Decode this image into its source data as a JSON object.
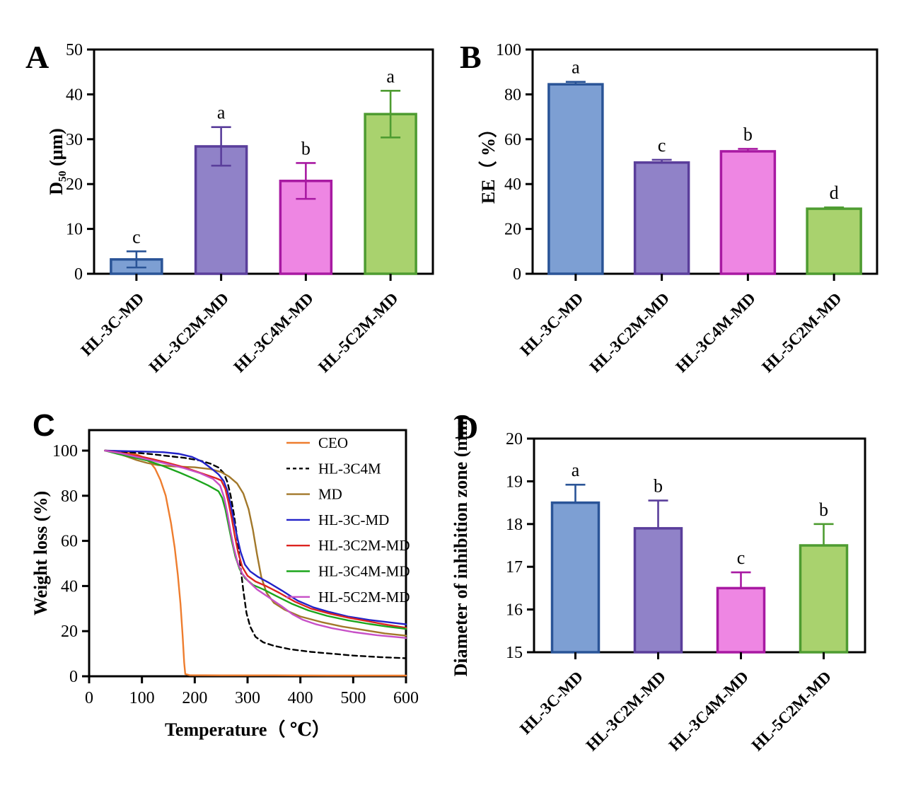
{
  "figure": {
    "panel_letters": [
      "A",
      "B",
      "C",
      "D"
    ],
    "categories": [
      "HL-3C-MD",
      "HL-3C2M-MD",
      "HL-3C4M-MD",
      "HL-5C2M-MD"
    ],
    "bar_palette": {
      "fills": [
        "#7D9FD3",
        "#9082C8",
        "#EE86E3",
        "#A9D26E"
      ],
      "strokes": [
        "#2A5497",
        "#5A3E9B",
        "#A819A2",
        "#4E9C31"
      ]
    }
  },
  "chart_data": [
    {
      "panel": "A",
      "type": "bar",
      "categories": [
        "HL-3C-MD",
        "HL-3C2M-MD",
        "HL-3C4M-MD",
        "HL-5C2M-MD"
      ],
      "values": [
        3.2,
        28.4,
        20.7,
        35.6
      ],
      "errors": [
        1.8,
        4.3,
        4.0,
        5.2
      ],
      "error_direction": "both",
      "sig_letters": [
        "c",
        "a",
        "b",
        "a"
      ],
      "ylabel": "D₅₀ (μm)",
      "xlabel": "",
      "ylim": [
        0,
        50
      ],
      "yticks": [
        0,
        10,
        20,
        30,
        40,
        50
      ],
      "grid": false
    },
    {
      "panel": "B",
      "type": "bar",
      "categories": [
        "HL-3C-MD",
        "HL-3C2M-MD",
        "HL-3C4M-MD",
        "HL-5C2M-MD"
      ],
      "values": [
        84.5,
        49.6,
        54.6,
        29.0
      ],
      "errors": [
        1.1,
        1.2,
        1.1,
        0.6
      ],
      "error_direction": "up",
      "sig_letters": [
        "a",
        "c",
        "b",
        "d"
      ],
      "ylabel": "EE（ %）",
      "xlabel": "",
      "ylim": [
        0,
        100
      ],
      "yticks": [
        0,
        20,
        40,
        60,
        80,
        100
      ],
      "grid": false
    },
    {
      "panel": "C",
      "type": "line",
      "xlabel": "Temperature（ ℃）",
      "ylabel": "Weight loss (%)",
      "xlim": [
        0,
        600
      ],
      "xticks": [
        0,
        100,
        200,
        300,
        400,
        500,
        600
      ],
      "ylim": [
        0,
        100
      ],
      "yticks": [
        0,
        20,
        40,
        60,
        80,
        100
      ],
      "grid": false,
      "legend_position": "inside top-right",
      "series": [
        {
          "name": "CEO",
          "color": "#EE7D2E",
          "dash": "solid",
          "points": [
            [
              30,
              100
            ],
            [
              50,
              99.8
            ],
            [
              70,
              99.3
            ],
            [
              90,
              98.3
            ],
            [
              105,
              96.8
            ],
            [
              115,
              95
            ],
            [
              125,
              92
            ],
            [
              135,
              87
            ],
            [
              145,
              80
            ],
            [
              155,
              68
            ],
            [
              162,
              57
            ],
            [
              168,
              45
            ],
            [
              173,
              32
            ],
            [
              177,
              18
            ],
            [
              180,
              6
            ],
            [
              182,
              1
            ],
            [
              190,
              0.5
            ],
            [
              250,
              0.4
            ],
            [
              350,
              0.4
            ],
            [
              450,
              0.3
            ],
            [
              600,
              0.3
            ]
          ]
        },
        {
          "name": "HL-3C4M",
          "color": "#000000",
          "dash": "dashed",
          "points": [
            [
              30,
              100
            ],
            [
              60,
              99.6
            ],
            [
              90,
              99
            ],
            [
              120,
              98.4
            ],
            [
              150,
              97.6
            ],
            [
              180,
              96.8
            ],
            [
              210,
              95.6
            ],
            [
              230,
              94.2
            ],
            [
              245,
              92.5
            ],
            [
              255,
              90
            ],
            [
              262,
              86
            ],
            [
              268,
              80
            ],
            [
              274,
              72
            ],
            [
              280,
              62
            ],
            [
              286,
              50
            ],
            [
              292,
              38
            ],
            [
              298,
              28
            ],
            [
              305,
              22
            ],
            [
              315,
              17.5
            ],
            [
              330,
              15
            ],
            [
              350,
              13.5
            ],
            [
              380,
              12
            ],
            [
              420,
              10.8
            ],
            [
              460,
              10
            ],
            [
              500,
              9.2
            ],
            [
              550,
              8.5
            ],
            [
              600,
              8
            ]
          ]
        },
        {
          "name": "MD",
          "color": "#A2782A",
          "dash": "solid",
          "points": [
            [
              30,
              100
            ],
            [
              50,
              99
            ],
            [
              70,
              97.5
            ],
            [
              90,
              95.8
            ],
            [
              110,
              94.5
            ],
            [
              130,
              93.6
            ],
            [
              160,
              93
            ],
            [
              200,
              92.6
            ],
            [
              230,
              91.8
            ],
            [
              250,
              90.5
            ],
            [
              265,
              88.5
            ],
            [
              280,
              85.5
            ],
            [
              292,
              81
            ],
            [
              302,
              74
            ],
            [
              310,
              65
            ],
            [
              318,
              54
            ],
            [
              326,
              44
            ],
            [
              336,
              37
            ],
            [
              350,
              32.5
            ],
            [
              370,
              29.5
            ],
            [
              400,
              26.5
            ],
            [
              440,
              24
            ],
            [
              480,
              22
            ],
            [
              520,
              20.5
            ],
            [
              560,
              19
            ],
            [
              600,
              18
            ]
          ]
        },
        {
          "name": "HL-3C-MD",
          "color": "#2222C8",
          "dash": "solid",
          "points": [
            [
              30,
              100
            ],
            [
              60,
              99.8
            ],
            [
              100,
              99.6
            ],
            [
              140,
              99.3
            ],
            [
              170,
              98.6
            ],
            [
              195,
              97.2
            ],
            [
              215,
              95
            ],
            [
              232,
              92
            ],
            [
              245,
              89.5
            ],
            [
              255,
              86.5
            ],
            [
              262,
              82
            ],
            [
              268,
              76
            ],
            [
              274,
              69
            ],
            [
              280,
              62
            ],
            [
              287,
              55
            ],
            [
              295,
              49.5
            ],
            [
              305,
              46.5
            ],
            [
              320,
              44
            ],
            [
              340,
              41.5
            ],
            [
              365,
              38
            ],
            [
              395,
              33.5
            ],
            [
              425,
              30.5
            ],
            [
              455,
              28.5
            ],
            [
              490,
              26.5
            ],
            [
              530,
              25
            ],
            [
              565,
              24
            ],
            [
              600,
              23
            ]
          ]
        },
        {
          "name": "HL-3C2M-MD",
          "color": "#DC2420",
          "dash": "solid",
          "points": [
            [
              30,
              100
            ],
            [
              60,
              99
            ],
            [
              90,
              97.8
            ],
            [
              120,
              96.2
            ],
            [
              150,
              94.5
            ],
            [
              180,
              92.6
            ],
            [
              205,
              90.6
            ],
            [
              225,
              89
            ],
            [
              240,
              87.8
            ],
            [
              250,
              86.8
            ],
            [
              258,
              83
            ],
            [
              264,
              77
            ],
            [
              270,
              70
            ],
            [
              276,
              62
            ],
            [
              282,
              55
            ],
            [
              290,
              48.5
            ],
            [
              300,
              44.5
            ],
            [
              315,
              42
            ],
            [
              335,
              40
            ],
            [
              360,
              37
            ],
            [
              390,
              33
            ],
            [
              420,
              30
            ],
            [
              455,
              27.8
            ],
            [
              490,
              26
            ],
            [
              530,
              24.3
            ],
            [
              565,
              22.8
            ],
            [
              600,
              21.5
            ]
          ]
        },
        {
          "name": "HL-3C4M-MD",
          "color": "#1CA51C",
          "dash": "solid",
          "points": [
            [
              30,
              100
            ],
            [
              55,
              98.5
            ],
            [
              80,
              97.2
            ],
            [
              110,
              95.6
            ],
            [
              140,
              93.2
            ],
            [
              170,
              90.4
            ],
            [
              200,
              87.4
            ],
            [
              225,
              84.6
            ],
            [
              245,
              82
            ],
            [
              252,
              79
            ],
            [
              258,
              74
            ],
            [
              264,
              67
            ],
            [
              270,
              60
            ],
            [
              277,
              53
            ],
            [
              285,
              47.5
            ],
            [
              295,
              43.5
            ],
            [
              310,
              40.5
            ],
            [
              330,
              38.5
            ],
            [
              355,
              35.5
            ],
            [
              385,
              32
            ],
            [
              415,
              29.2
            ],
            [
              450,
              26.8
            ],
            [
              490,
              24.8
            ],
            [
              530,
              23.2
            ],
            [
              565,
              22
            ],
            [
              600,
              21
            ]
          ]
        },
        {
          "name": "HL-5C2M-MD",
          "color": "#C750C7",
          "dash": "solid",
          "points": [
            [
              30,
              100
            ],
            [
              60,
              98.8
            ],
            [
              90,
              97.2
            ],
            [
              120,
              95.6
            ],
            [
              150,
              94
            ],
            [
              180,
              92.2
            ],
            [
              210,
              90
            ],
            [
              235,
              87.4
            ],
            [
              248,
              84.5
            ],
            [
              256,
              79
            ],
            [
              262,
              72
            ],
            [
              268,
              64
            ],
            [
              274,
              57
            ],
            [
              281,
              50.5
            ],
            [
              290,
              45.5
            ],
            [
              302,
              42
            ],
            [
              318,
              38.5
            ],
            [
              340,
              35
            ],
            [
              365,
              31
            ],
            [
              385,
              27.5
            ],
            [
              405,
              25
            ],
            [
              430,
              23
            ],
            [
              460,
              21.3
            ],
            [
              500,
              19.6
            ],
            [
              545,
              18.2
            ],
            [
              600,
              17
            ]
          ]
        }
      ]
    },
    {
      "panel": "D",
      "type": "bar",
      "categories": [
        "HL-3C-MD",
        "HL-3C2M-MD",
        "HL-3C4M-MD",
        "HL-5C2M-MD"
      ],
      "values": [
        18.5,
        17.9,
        16.5,
        17.5
      ],
      "errors": [
        0.42,
        0.65,
        0.37,
        0.5
      ],
      "error_direction": "up",
      "sig_letters": [
        "a",
        "b",
        "c",
        "b"
      ],
      "ylabel": "Diameter of inhibition zone (mm)",
      "xlabel": "",
      "ylim": [
        15,
        20
      ],
      "yticks": [
        15,
        16,
        17,
        18,
        19,
        20
      ],
      "grid": false
    }
  ]
}
